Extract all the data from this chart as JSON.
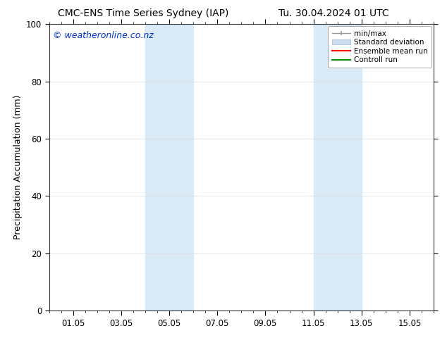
{
  "title_left": "CMC-ENS Time Series Sydney (IAP)",
  "title_right": "Tu. 30.04.2024 01 UTC",
  "ylabel": "Precipitation Accumulation (mm)",
  "watermark": "© weatheronline.co.nz",
  "watermark_color": "#0033cc",
  "xlim": [
    0,
    16
  ],
  "ylim": [
    0,
    100
  ],
  "yticks": [
    0,
    20,
    40,
    60,
    80,
    100
  ],
  "xtick_labels": [
    "01.05",
    "03.05",
    "05.05",
    "07.05",
    "09.05",
    "11.05",
    "13.05",
    "15.05"
  ],
  "xtick_positions": [
    1,
    3,
    5,
    7,
    9,
    11,
    13,
    15
  ],
  "background_color": "#ffffff",
  "plot_bg_color": "#ffffff",
  "shaded_bands": [
    {
      "xmin": 4.0,
      "xmax": 6.0,
      "color": "#daeaf7"
    },
    {
      "xmin": 11.0,
      "xmax": 13.0,
      "color": "#daeaf7"
    }
  ],
  "legend_labels": [
    "min/max",
    "Standard deviation",
    "Ensemble mean run",
    "Controll run"
  ],
  "legend_colors": [
    "#999999",
    "#ccddf0",
    "#ff0000",
    "#008800"
  ],
  "title_fontsize": 10,
  "tick_fontsize": 8.5,
  "ylabel_fontsize": 9,
  "watermark_fontsize": 9
}
